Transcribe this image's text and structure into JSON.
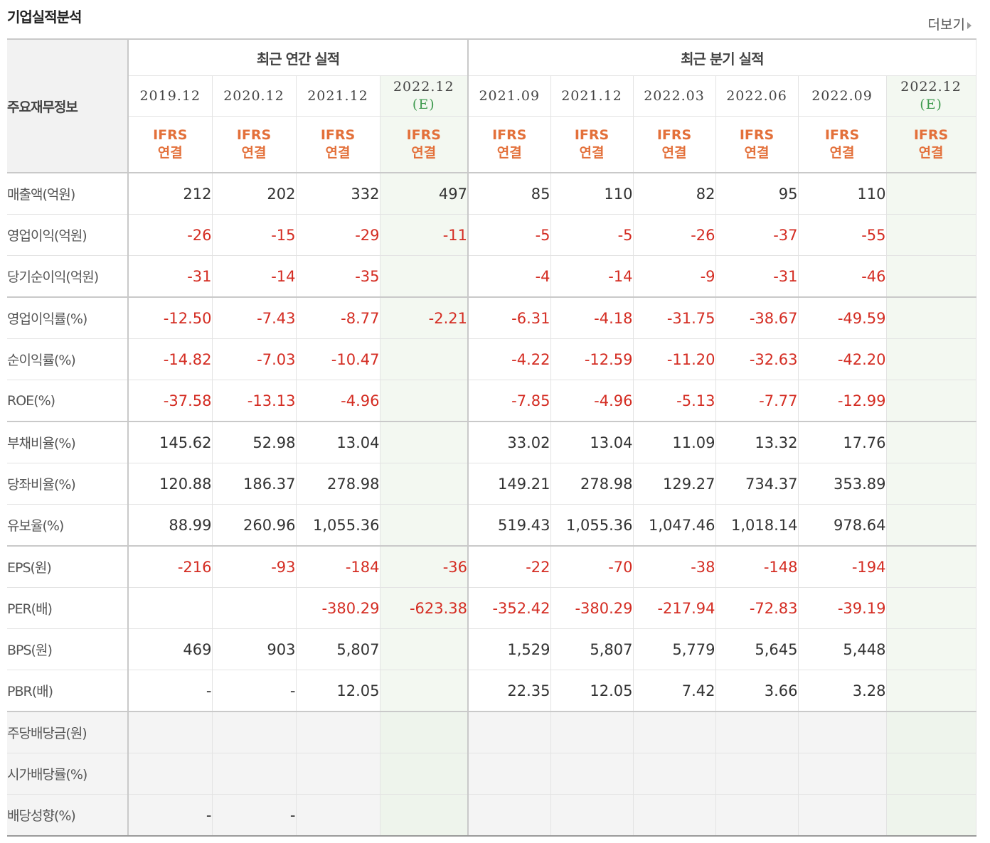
{
  "title": "기업실적분석",
  "more_label": "더보기",
  "corner_label": "주요재무정보",
  "groups": {
    "annual": "최근 연간 실적",
    "quarterly": "최근 분기 실적"
  },
  "periods": [
    {
      "date": "2019.12",
      "est": ""
    },
    {
      "date": "2020.12",
      "est": ""
    },
    {
      "date": "2021.12",
      "est": ""
    },
    {
      "date": "2022.12",
      "est": "(E)"
    },
    {
      "date": "2021.09",
      "est": ""
    },
    {
      "date": "2021.12",
      "est": ""
    },
    {
      "date": "2022.03",
      "est": ""
    },
    {
      "date": "2022.06",
      "est": ""
    },
    {
      "date": "2022.09",
      "est": ""
    },
    {
      "date": "2022.12",
      "est": "(E)"
    }
  ],
  "basis": {
    "line1": "IFRS",
    "line2": "연결"
  },
  "rows": [
    {
      "label": "매출액(억원)",
      "group_end": false,
      "values": [
        "212",
        "202",
        "332",
        "497",
        "85",
        "110",
        "82",
        "95",
        "110",
        ""
      ]
    },
    {
      "label": "영업이익(억원)",
      "group_end": false,
      "values": [
        "-26",
        "-15",
        "-29",
        "-11",
        "-5",
        "-5",
        "-26",
        "-37",
        "-55",
        ""
      ]
    },
    {
      "label": "당기순이익(억원)",
      "group_end": true,
      "values": [
        "-31",
        "-14",
        "-35",
        "",
        "-4",
        "-14",
        "-9",
        "-31",
        "-46",
        ""
      ]
    },
    {
      "label": "영업이익률(%)",
      "group_end": false,
      "values": [
        "-12.50",
        "-7.43",
        "-8.77",
        "-2.21",
        "-6.31",
        "-4.18",
        "-31.75",
        "-38.67",
        "-49.59",
        ""
      ]
    },
    {
      "label": "순이익률(%)",
      "group_end": false,
      "values": [
        "-14.82",
        "-7.03",
        "-10.47",
        "",
        "-4.22",
        "-12.59",
        "-11.20",
        "-32.63",
        "-42.20",
        ""
      ]
    },
    {
      "label": "ROE(%)",
      "group_end": true,
      "values": [
        "-37.58",
        "-13.13",
        "-4.96",
        "",
        "-7.85",
        "-4.96",
        "-5.13",
        "-7.77",
        "-12.99",
        ""
      ]
    },
    {
      "label": "부채비율(%)",
      "group_end": false,
      "values": [
        "145.62",
        "52.98",
        "13.04",
        "",
        "33.02",
        "13.04",
        "11.09",
        "13.32",
        "17.76",
        ""
      ]
    },
    {
      "label": "당좌비율(%)",
      "group_end": false,
      "values": [
        "120.88",
        "186.37",
        "278.98",
        "",
        "149.21",
        "278.98",
        "129.27",
        "734.37",
        "353.89",
        ""
      ]
    },
    {
      "label": "유보율(%)",
      "group_end": true,
      "values": [
        "88.99",
        "260.96",
        "1,055.36",
        "",
        "519.43",
        "1,055.36",
        "1,047.46",
        "1,018.14",
        "978.64",
        ""
      ]
    },
    {
      "label": "EPS(원)",
      "group_end": false,
      "values": [
        "-216",
        "-93",
        "-184",
        "-36",
        "-22",
        "-70",
        "-38",
        "-148",
        "-194",
        ""
      ]
    },
    {
      "label": "PER(배)",
      "group_end": false,
      "values": [
        "",
        "",
        "-380.29",
        "-623.38",
        "-352.42",
        "-380.29",
        "-217.94",
        "-72.83",
        "-39.19",
        ""
      ]
    },
    {
      "label": "BPS(원)",
      "group_end": false,
      "values": [
        "469",
        "903",
        "5,807",
        "",
        "1,529",
        "5,807",
        "5,779",
        "5,645",
        "5,448",
        ""
      ]
    },
    {
      "label": "PBR(배)",
      "group_end": true,
      "values": [
        "-",
        "-",
        "12.05",
        "",
        "22.35",
        "12.05",
        "7.42",
        "3.66",
        "3.28",
        ""
      ]
    },
    {
      "label": "주당배당금(원)",
      "group_end": false,
      "values": [
        "",
        "",
        "",
        "",
        "",
        "",
        "",
        "",
        "",
        ""
      ]
    },
    {
      "label": "시가배당률(%)",
      "group_end": false,
      "values": [
        "",
        "",
        "",
        "",
        "",
        "",
        "",
        "",
        "",
        ""
      ]
    },
    {
      "label": "배당성향(%)",
      "group_end": false,
      "values": [
        "-",
        "-",
        "",
        "",
        "",
        "",
        "",
        "",
        "",
        ""
      ]
    }
  ],
  "colors": {
    "negative": "#d42d23",
    "basis": "#e3703a",
    "estimate": "#3e9a4e",
    "forecast_bg": "#f3f8f1"
  }
}
